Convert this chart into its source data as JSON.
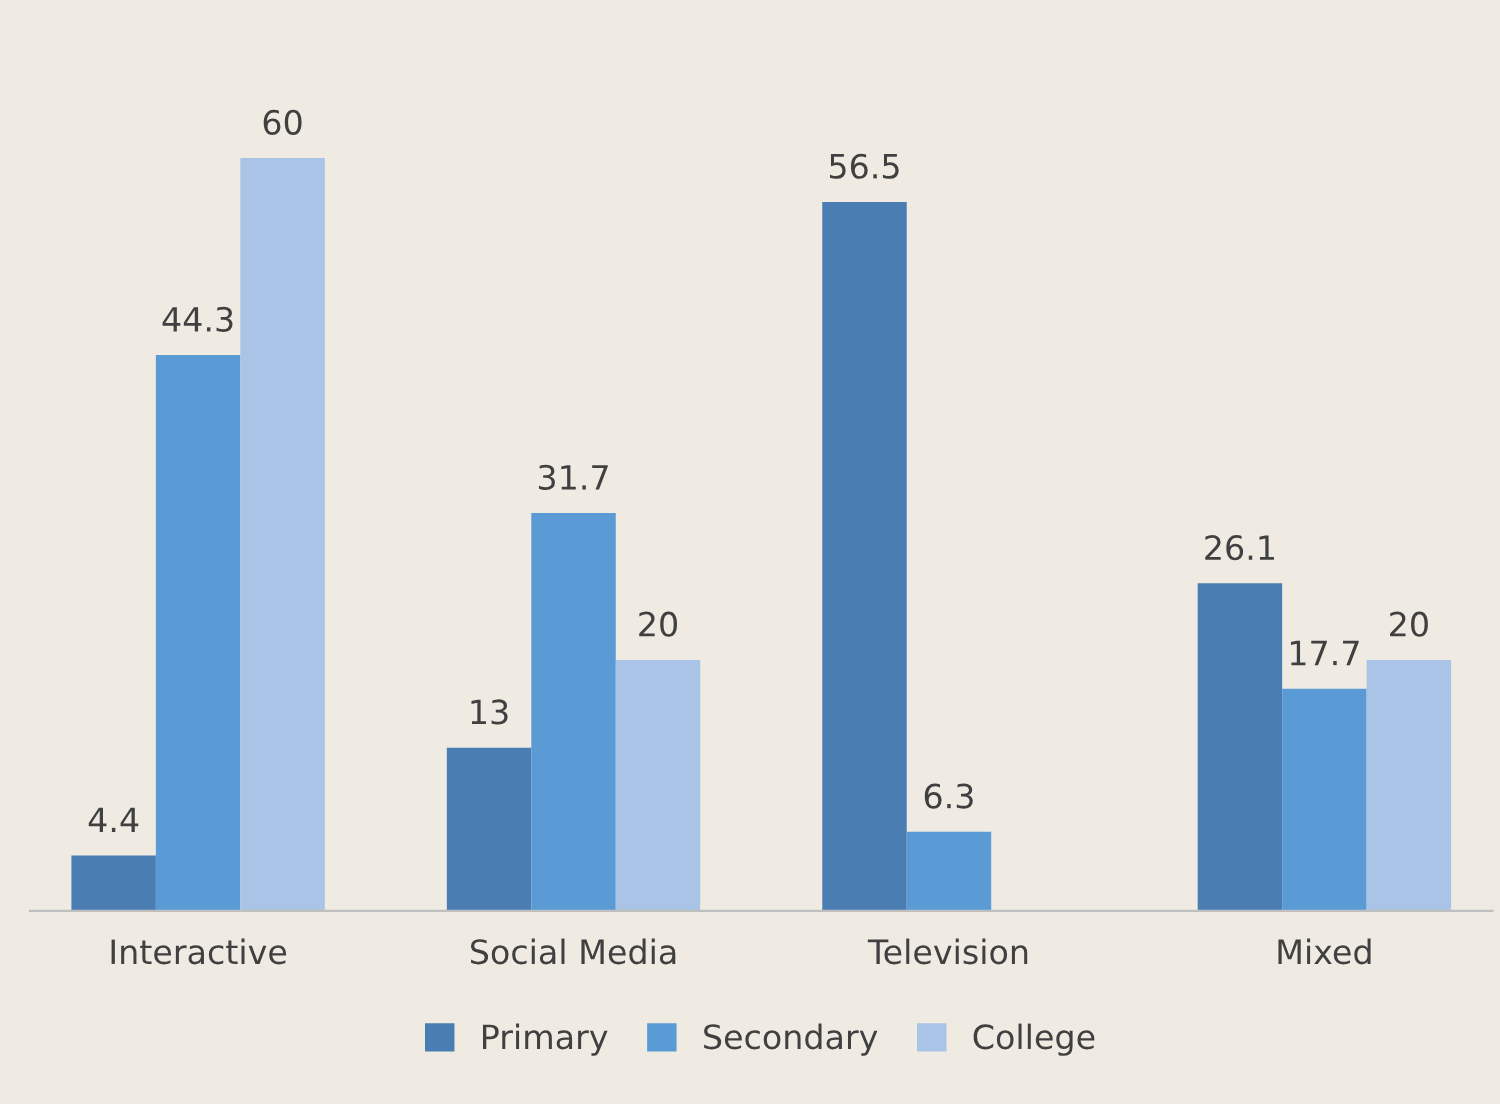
{
  "chart_data": {
    "type": "bar",
    "categories": [
      "Interactive",
      "Social Media",
      "Television",
      "Mixed"
    ],
    "series": [
      {
        "name": "Primary",
        "color": "#4a7eb3",
        "values": [
          4.4,
          13,
          56.5,
          26.1
        ]
      },
      {
        "name": "Secondary",
        "color": "#5b9bd5",
        "values": [
          44.3,
          31.7,
          6.3,
          17.7
        ]
      },
      {
        "name": "College",
        "color": "#a9c4e6",
        "values": [
          60,
          20,
          null,
          20
        ]
      }
    ],
    "data_labels": true,
    "legend": "bottom",
    "grid": false,
    "tick_labels": "x"
  }
}
